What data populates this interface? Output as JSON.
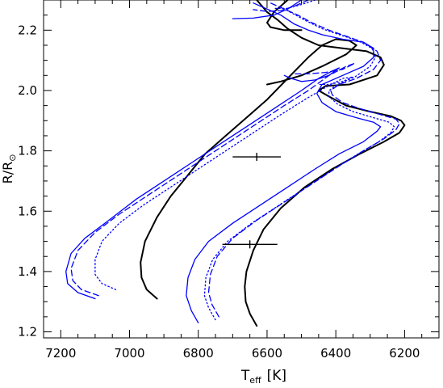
{
  "chart_data": {
    "type": "line",
    "title": "",
    "xlabel": {
      "main": "T",
      "subscript": "eff",
      "unit": "[K]"
    },
    "ylabel": {
      "main": "R/R",
      "subscript": "⊙"
    },
    "x_axis_reversed": true,
    "xlim": [
      7250,
      6100
    ],
    "ylim": [
      1.18,
      2.3
    ],
    "x_ticks": [
      7200,
      7000,
      6800,
      6600,
      6400,
      6200
    ],
    "x_tick_labels": [
      "7200",
      "7000",
      "6800",
      "6600",
      "6400",
      "6200"
    ],
    "y_ticks": [
      1.2,
      1.4,
      1.6,
      1.8,
      2.0,
      2.2
    ],
    "y_tick_labels": [
      "1.2",
      "1.4",
      "1.6",
      "1.8",
      "2.0",
      "2.2"
    ],
    "colors": {
      "black": "#000000",
      "blue": "#0000ff"
    },
    "series": [
      {
        "color": "black",
        "style": "solid",
        "points": [
          [
            6920,
            1.31
          ],
          [
            6950,
            1.34
          ],
          [
            6965,
            1.38
          ],
          [
            6968,
            1.43
          ],
          [
            6955,
            1.5
          ],
          [
            6920,
            1.58
          ],
          [
            6880,
            1.65
          ],
          [
            6830,
            1.72
          ],
          [
            6780,
            1.79
          ],
          [
            6720,
            1.85
          ],
          [
            6660,
            1.91
          ],
          [
            6600,
            1.97
          ],
          [
            6540,
            2.04
          ],
          [
            6480,
            2.11
          ],
          [
            6440,
            2.15
          ],
          [
            6400,
            2.17
          ],
          [
            6360,
            2.165
          ],
          [
            6340,
            2.15
          ],
          [
            6370,
            2.12
          ],
          [
            6440,
            2.08
          ],
          [
            6500,
            2.05
          ],
          [
            6560,
            2.03
          ],
          [
            6600,
            2.02
          ]
        ]
      },
      {
        "color": "black",
        "style": "solid",
        "points": [
          [
            6630,
            1.22
          ],
          [
            6650,
            1.26
          ],
          [
            6662,
            1.3
          ],
          [
            6665,
            1.35
          ],
          [
            6660,
            1.4
          ],
          [
            6640,
            1.47
          ],
          [
            6610,
            1.54
          ],
          [
            6560,
            1.61
          ],
          [
            6490,
            1.68
          ],
          [
            6410,
            1.74
          ],
          [
            6330,
            1.79
          ],
          [
            6260,
            1.83
          ],
          [
            6215,
            1.86
          ],
          [
            6200,
            1.885
          ],
          [
            6210,
            1.9
          ],
          [
            6240,
            1.915
          ],
          [
            6300,
            1.93
          ],
          [
            6370,
            1.95
          ],
          [
            6420,
            1.98
          ],
          [
            6450,
            2.0
          ],
          [
            6430,
            2.015
          ],
          [
            6360,
            2.02
          ],
          [
            6280,
            2.05
          ],
          [
            6260,
            2.085
          ],
          [
            6270,
            2.11
          ],
          [
            6310,
            2.13
          ],
          [
            6380,
            2.14
          ],
          [
            6450,
            2.15
          ],
          [
            6500,
            2.175
          ],
          [
            6540,
            2.205
          ],
          [
            6570,
            2.235
          ],
          [
            6600,
            2.26
          ],
          [
            6630,
            2.3
          ]
        ]
      },
      {
        "color": "black",
        "style": "solid",
        "points": [
          [
            6540,
            2.3
          ],
          [
            6580,
            2.26
          ],
          [
            6600,
            2.225
          ],
          [
            6590,
            2.21
          ],
          [
            6550,
            2.2
          ],
          [
            6500,
            2.2
          ]
        ]
      },
      {
        "color": "blue",
        "style": "solid",
        "points": [
          [
            7100,
            1.31
          ],
          [
            7150,
            1.33
          ],
          [
            7180,
            1.36
          ],
          [
            7185,
            1.4
          ],
          [
            7170,
            1.46
          ],
          [
            7130,
            1.51
          ],
          [
            7060,
            1.57
          ],
          [
            6980,
            1.64
          ],
          [
            6900,
            1.7
          ],
          [
            6820,
            1.76
          ],
          [
            6740,
            1.82
          ],
          [
            6660,
            1.88
          ],
          [
            6580,
            1.94
          ],
          [
            6500,
            2.0
          ],
          [
            6450,
            2.04
          ],
          [
            6410,
            2.065
          ],
          [
            6390,
            2.075
          ],
          [
            6420,
            2.05
          ],
          [
            6460,
            2.035
          ],
          [
            6500,
            2.03
          ],
          [
            6530,
            2.04
          ],
          [
            6550,
            2.05
          ]
        ]
      },
      {
        "color": "blue",
        "style": "dashed",
        "points": [
          [
            7090,
            1.32
          ],
          [
            7140,
            1.34
          ],
          [
            7165,
            1.37
          ],
          [
            7170,
            1.41
          ],
          [
            7150,
            1.47
          ],
          [
            7100,
            1.53
          ],
          [
            7030,
            1.59
          ],
          [
            6950,
            1.65
          ],
          [
            6870,
            1.71
          ],
          [
            6790,
            1.77
          ],
          [
            6710,
            1.83
          ],
          [
            6630,
            1.89
          ],
          [
            6550,
            1.95
          ],
          [
            6480,
            2.0
          ],
          [
            6420,
            2.05
          ],
          [
            6370,
            2.08
          ],
          [
            6345,
            2.09
          ],
          [
            6380,
            2.07
          ],
          [
            6430,
            2.06
          ],
          [
            6480,
            2.055
          ],
          [
            6520,
            2.055
          ]
        ]
      },
      {
        "color": "blue",
        "style": "dotted",
        "points": [
          [
            7040,
            1.34
          ],
          [
            7080,
            1.36
          ],
          [
            7100,
            1.39
          ],
          [
            7100,
            1.44
          ],
          [
            7080,
            1.5
          ],
          [
            7030,
            1.56
          ],
          [
            6960,
            1.62
          ],
          [
            6880,
            1.68
          ],
          [
            6800,
            1.74
          ],
          [
            6720,
            1.8
          ],
          [
            6640,
            1.86
          ],
          [
            6560,
            1.92
          ],
          [
            6490,
            1.97
          ],
          [
            6430,
            2.01
          ],
          [
            6380,
            2.04
          ],
          [
            6350,
            2.045
          ],
          [
            6380,
            2.03
          ],
          [
            6420,
            2.02
          ],
          [
            6450,
            2.02
          ]
        ]
      },
      {
        "color": "blue",
        "style": "solid",
        "points": [
          [
            6800,
            1.23
          ],
          [
            6820,
            1.27
          ],
          [
            6835,
            1.32
          ],
          [
            6830,
            1.38
          ],
          [
            6810,
            1.44
          ],
          [
            6770,
            1.5
          ],
          [
            6700,
            1.56
          ],
          [
            6620,
            1.62
          ],
          [
            6540,
            1.68
          ],
          [
            6460,
            1.74
          ],
          [
            6390,
            1.79
          ],
          [
            6320,
            1.83
          ],
          [
            6280,
            1.865
          ],
          [
            6270,
            1.88
          ],
          [
            6290,
            1.895
          ],
          [
            6340,
            1.91
          ],
          [
            6400,
            1.93
          ],
          [
            6440,
            1.96
          ],
          [
            6455,
            1.99
          ],
          [
            6440,
            2.02
          ],
          [
            6380,
            2.05
          ],
          [
            6320,
            2.08
          ],
          [
            6290,
            2.11
          ],
          [
            6290,
            2.14
          ],
          [
            6320,
            2.16
          ],
          [
            6380,
            2.17
          ],
          [
            6440,
            2.185
          ],
          [
            6480,
            2.2
          ],
          [
            6520,
            2.22
          ],
          [
            6560,
            2.25
          ],
          [
            6600,
            2.27
          ],
          [
            6640,
            2.29
          ]
        ]
      },
      {
        "color": "blue",
        "style": "dashed",
        "points": [
          [
            6740,
            1.25
          ],
          [
            6760,
            1.29
          ],
          [
            6770,
            1.33
          ],
          [
            6765,
            1.39
          ],
          [
            6745,
            1.45
          ],
          [
            6700,
            1.51
          ],
          [
            6630,
            1.57
          ],
          [
            6550,
            1.63
          ],
          [
            6470,
            1.69
          ],
          [
            6390,
            1.75
          ],
          [
            6320,
            1.8
          ],
          [
            6260,
            1.84
          ],
          [
            6225,
            1.87
          ],
          [
            6215,
            1.89
          ],
          [
            6225,
            1.905
          ],
          [
            6270,
            1.92
          ],
          [
            6330,
            1.94
          ],
          [
            6380,
            1.96
          ],
          [
            6410,
            1.985
          ],
          [
            6415,
            2.0
          ],
          [
            6390,
            2.02
          ],
          [
            6340,
            2.04
          ],
          [
            6290,
            2.07
          ],
          [
            6270,
            2.1
          ],
          [
            6280,
            2.13
          ],
          [
            6320,
            2.16
          ],
          [
            6370,
            2.18
          ],
          [
            6420,
            2.2
          ],
          [
            6470,
            2.225
          ],
          [
            6510,
            2.25
          ],
          [
            6550,
            2.27
          ],
          [
            6590,
            2.29
          ]
        ]
      },
      {
        "color": "blue",
        "style": "dotted",
        "points": [
          [
            6750,
            1.24
          ],
          [
            6770,
            1.28
          ],
          [
            6782,
            1.32
          ],
          [
            6778,
            1.38
          ],
          [
            6758,
            1.44
          ],
          [
            6715,
            1.5
          ],
          [
            6645,
            1.56
          ],
          [
            6565,
            1.62
          ],
          [
            6485,
            1.68
          ],
          [
            6405,
            1.74
          ],
          [
            6335,
            1.79
          ],
          [
            6275,
            1.83
          ],
          [
            6240,
            1.86
          ],
          [
            6230,
            1.88
          ],
          [
            6245,
            1.895
          ],
          [
            6290,
            1.91
          ],
          [
            6350,
            1.93
          ],
          [
            6395,
            1.955
          ],
          [
            6420,
            1.98
          ],
          [
            6420,
            2.0
          ],
          [
            6395,
            2.02
          ],
          [
            6345,
            2.045
          ],
          [
            6300,
            2.08
          ],
          [
            6285,
            2.11
          ],
          [
            6295,
            2.14
          ],
          [
            6335,
            2.165
          ],
          [
            6390,
            2.185
          ],
          [
            6440,
            2.205
          ],
          [
            6485,
            2.23
          ],
          [
            6525,
            2.255
          ],
          [
            6565,
            2.28
          ]
        ]
      },
      {
        "color": "blue",
        "style": "solid",
        "points": [
          [
            6500,
            2.3
          ],
          [
            6540,
            2.27
          ],
          [
            6580,
            2.25
          ],
          [
            6640,
            2.24
          ],
          [
            6700,
            2.238
          ]
        ]
      },
      {
        "color": "blue",
        "style": "dashed",
        "points": [
          [
            6480,
            2.3
          ],
          [
            6520,
            2.28
          ],
          [
            6560,
            2.265
          ],
          [
            6600,
            2.262
          ],
          [
            6640,
            2.268
          ]
        ]
      },
      {
        "color": "blue",
        "style": "dotted",
        "points": [
          [
            6460,
            2.3
          ],
          [
            6500,
            2.285
          ],
          [
            6540,
            2.272
          ],
          [
            6580,
            2.272
          ]
        ]
      }
    ],
    "errorbars": [
      {
        "x": 6630,
        "y": 1.78,
        "xerr": 70
      },
      {
        "x": 6650,
        "y": 1.49,
        "xerr": 80
      }
    ]
  }
}
